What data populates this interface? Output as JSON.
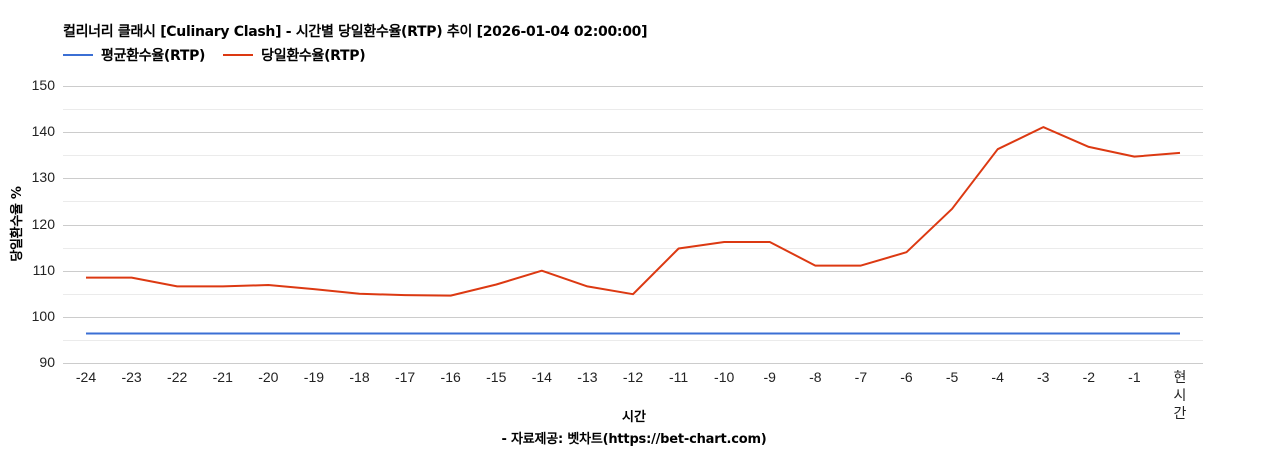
{
  "title": "컬리너리 클래시 [Culinary Clash] - 시간별 당일환수율(RTP) 추이 [2026-01-04 02:00:00]",
  "legend": [
    {
      "label": "평균환수율(RTP)",
      "color": "#3b6fd4"
    },
    {
      "label": "당일환수율(RTP)",
      "color": "#dc3912"
    }
  ],
  "y_axis": {
    "title": "당일환수율 %",
    "ticks": [
      "150",
      "140",
      "130",
      "120",
      "110",
      "100",
      "90"
    ]
  },
  "x_axis": {
    "title": "시간"
  },
  "source": "- 자료제공: 벳차트(https://bet-chart.com)",
  "chart_data": {
    "type": "line",
    "title": "컬리너리 클래시 [Culinary Clash] - 시간별 당일환수율(RTP) 추이 [2026-01-04 02:00:00]",
    "xlabel": "시간",
    "ylabel": "당일환수율 %",
    "ylim": [
      90,
      150
    ],
    "yticks": [
      90,
      100,
      110,
      120,
      130,
      140,
      150
    ],
    "grid": true,
    "minor_grid": true,
    "legend_position": "top",
    "categories": [
      "-24",
      "-23",
      "-22",
      "-21",
      "-20",
      "-19",
      "-18",
      "-17",
      "-16",
      "-15",
      "-14",
      "-13",
      "-12",
      "-11",
      "-10",
      "-9",
      "-8",
      "-7",
      "-6",
      "-5",
      "-4",
      "-3",
      "-2",
      "-1",
      "현시간"
    ],
    "series": [
      {
        "name": "평균환수율(RTP)",
        "color": "#3b6fd4",
        "values": [
          96.4,
          96.4,
          96.4,
          96.4,
          96.4,
          96.4,
          96.4,
          96.4,
          96.4,
          96.4,
          96.4,
          96.4,
          96.4,
          96.4,
          96.4,
          96.4,
          96.4,
          96.4,
          96.4,
          96.4,
          96.4,
          96.4,
          96.4,
          96.4,
          96.4
        ]
      },
      {
        "name": "당일환수율(RTP)",
        "color": "#dc3912",
        "values": [
          108.5,
          108.5,
          106.6,
          106.6,
          106.9,
          106.0,
          105.0,
          104.7,
          104.6,
          107.0,
          110.0,
          106.6,
          104.9,
          114.8,
          116.2,
          116.2,
          111.1,
          111.1,
          114.0,
          123.4,
          136.3,
          141.1,
          136.8,
          134.7,
          135.5
        ]
      }
    ]
  }
}
